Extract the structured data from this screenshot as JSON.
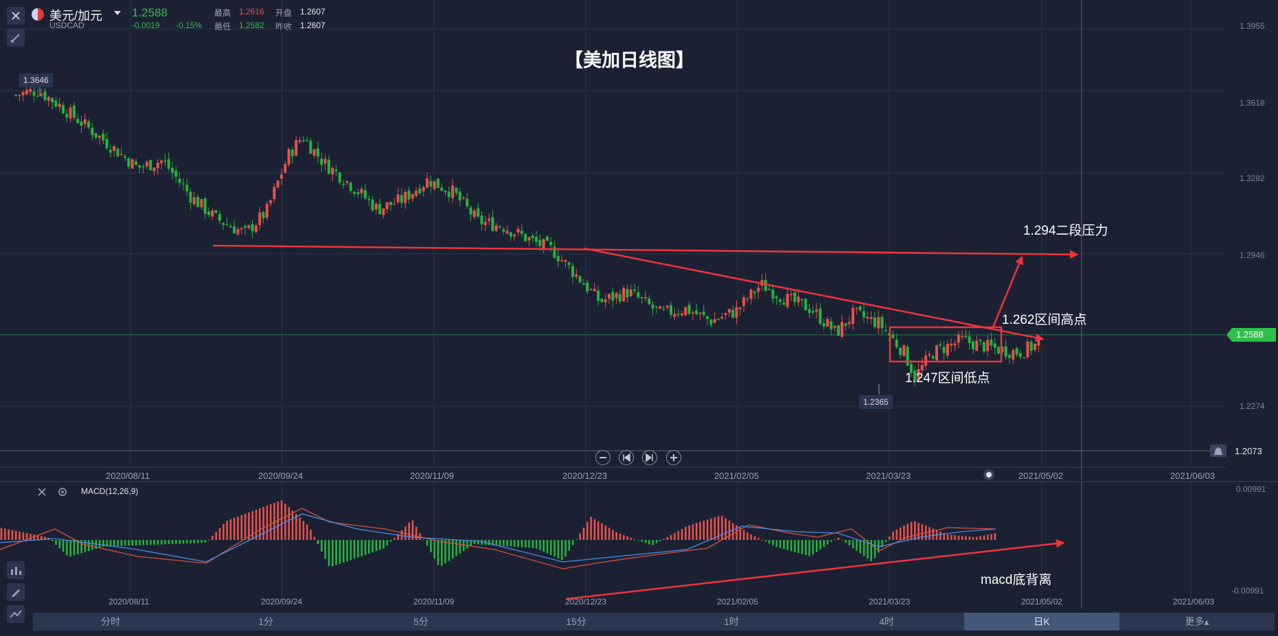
{
  "header": {
    "symbol_name": "美元/加元",
    "symbol_code": "USDCAD",
    "price": "1.2588",
    "change": "-0.0019",
    "change_pct": "-0.15%",
    "high_label": "最高",
    "high": "1.2616",
    "open_label": "开盘",
    "open": "1.2607",
    "low_label": "最低",
    "low": "1.2582",
    "prev_label": "昨收",
    "prev": "1.2607"
  },
  "chart_title": "【美加日线图】",
  "price_axis": [
    "1.3955",
    "1.3618",
    "1.3282",
    "1.2946",
    "1.2274"
  ],
  "current_price_tag": "1.2588",
  "alert_price": "1.2073",
  "hi_marker": "1.3646",
  "lo_marker": "1.2365",
  "date_axis": [
    "2020/08/11",
    "2020/09/24",
    "2020/11/09",
    "2020/12/23",
    "2021/02/05",
    "2021/03/23",
    "2021/05/02",
    "2021/06/03"
  ],
  "annotations": {
    "resistance2": "1.294二段压力",
    "range_high": "1.262区间高点",
    "range_low": "1.247区间低点",
    "macd_div": "macd底背离"
  },
  "macd": {
    "label": "MACD(12,26,9)",
    "axis_top": "0.00991",
    "axis_bottom": "-0.00991"
  },
  "timeframes": [
    "分时",
    "1分",
    "5分",
    "15分",
    "1时",
    "4时",
    "日K",
    "更多▴"
  ],
  "colors": {
    "up": "#e8524a",
    "down": "#27b33d",
    "bg": "#1b2133",
    "annotation": "#f0343c",
    "accent_green": "#2fbf4a"
  },
  "chart_data": {
    "type": "candlestick",
    "x_labels": [
      "2020/08/11",
      "2020/09/24",
      "2020/11/09",
      "2020/12/23",
      "2021/02/05",
      "2021/03/23",
      "2021/05/02",
      "2021/06/03"
    ],
    "ylim": [
      1.2073,
      1.3955
    ],
    "close_path": [
      [
        "2020/07/10",
        1.36
      ],
      [
        "2020/07/16",
        1.362
      ],
      [
        "2020/07/22",
        1.356
      ],
      [
        "2020/08/03",
        1.342
      ],
      [
        "2020/08/13",
        1.33
      ],
      [
        "2020/08/20",
        1.333
      ],
      [
        "2020/08/28",
        1.318
      ],
      [
        "2020/09/04",
        1.309
      ],
      [
        "2020/09/12",
        1.303
      ],
      [
        "2020/09/18",
        1.312
      ],
      [
        "2020/09/24",
        1.335
      ],
      [
        "2020/09/28",
        1.343
      ],
      [
        "2020/10/04",
        1.332
      ],
      [
        "2020/10/10",
        1.325
      ],
      [
        "2020/10/19",
        1.313
      ],
      [
        "2020/10/26",
        1.317
      ],
      [
        "2020/11/02",
        1.325
      ],
      [
        "2020/11/09",
        1.32
      ],
      [
        "2020/11/16",
        1.308
      ],
      [
        "2020/11/23",
        1.306
      ],
      [
        "2020/12/01",
        1.3
      ],
      [
        "2020/12/07",
        1.296
      ],
      [
        "2020/12/14",
        1.285
      ],
      [
        "2020/12/20",
        1.275
      ],
      [
        "2020/12/28",
        1.279
      ],
      [
        "2021/01/06",
        1.27
      ],
      [
        "2021/01/13",
        1.272
      ],
      [
        "2021/01/20",
        1.267
      ],
      [
        "2021/01/27",
        1.271
      ],
      [
        "2021/02/03",
        1.282
      ],
      [
        "2021/02/10",
        1.276
      ],
      [
        "2021/02/17",
        1.272
      ],
      [
        "2021/02/24",
        1.262
      ],
      [
        "2021/03/01",
        1.27
      ],
      [
        "2021/03/08",
        1.266
      ],
      [
        "2021/03/15",
        1.254
      ],
      [
        "2021/03/18",
        1.244
      ],
      [
        "2021/03/23",
        1.254
      ],
      [
        "2021/03/31",
        1.259
      ],
      [
        "2021/04/08",
        1.256
      ],
      [
        "2021/04/16",
        1.254
      ],
      [
        "2021/04/22",
        1.258
      ]
    ],
    "extremes": {
      "high": 1.3646,
      "low": 1.2365
    },
    "last_close": 1.2588
  }
}
